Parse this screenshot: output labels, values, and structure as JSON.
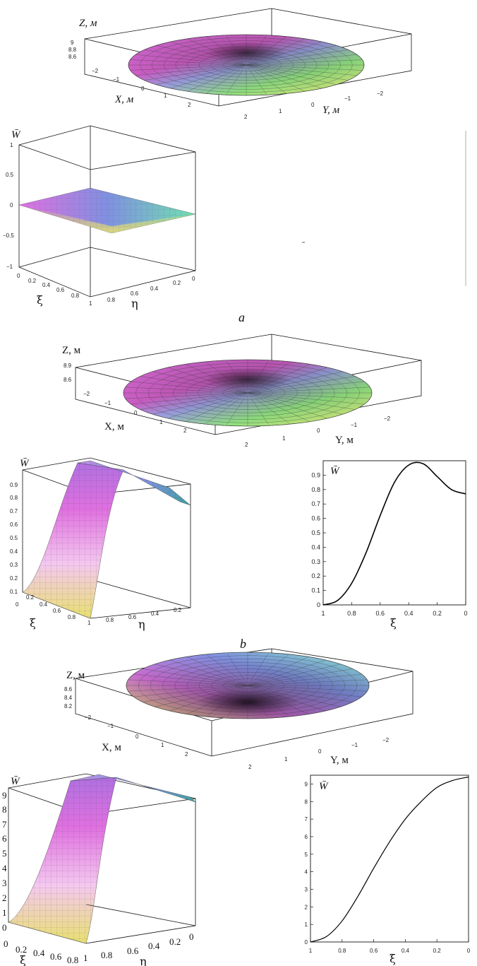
{
  "figure": {
    "panels": [
      {
        "caption": "a",
        "top": {
          "zlabel": "Z, м",
          "xlabel": "X, м",
          "ylabel": "Y, м",
          "zticks": [
            "9",
            "8.8",
            "8.6"
          ],
          "xticks": [
            "−2",
            "−1",
            "0",
            "1",
            "2"
          ],
          "yticks": [
            "2",
            "1",
            "0",
            "−1",
            "−2"
          ]
        },
        "surface": {
          "wlabel": "W̄",
          "wticks": [
            "1",
            "0.5",
            "0",
            "−0.5",
            "−1"
          ],
          "xi_ticks": [
            "0",
            "0.2",
            "0.4",
            "0.6",
            "0.8"
          ],
          "eta_ticks": [
            "1",
            "0.8",
            "0.6",
            "0.4",
            "0.2",
            "0"
          ],
          "xi_label": "ξ",
          "eta_label": "η"
        }
      },
      {
        "caption": "b",
        "top": {
          "zlabel": "Z, м",
          "xlabel": "X, м",
          "ylabel": "Y, м",
          "zticks": [
            "8.9",
            "8.6"
          ],
          "xticks": [
            "−2",
            "−1",
            "0",
            "1",
            "2"
          ],
          "yticks": [
            "2",
            "1",
            "0",
            "−1",
            "−2"
          ]
        },
        "surface": {
          "wlabel": "W̄",
          "wticks": [
            "0.9",
            "0.8",
            "0.7",
            "0.6",
            "0.5",
            "0.4",
            "0.3",
            "0.2",
            "0.1",
            "0"
          ],
          "xi_ticks": [
            "0.2",
            "0.4",
            "0.6",
            "0.8"
          ],
          "eta_ticks": [
            "1",
            "0.8",
            "0.6",
            "0.4",
            "0.2"
          ],
          "xi_label": "ξ",
          "eta_label": "η"
        },
        "profile": {
          "wlabel": "W̄",
          "yticks": [
            "0.9",
            "0.8",
            "0.7",
            "0.6",
            "0.5",
            "0.4",
            "0.3",
            "0.2",
            "0.1",
            "0"
          ],
          "xticks": [
            "1",
            "0.8",
            "0.6",
            "0.4",
            "0.2",
            "0"
          ],
          "xi_label": "ξ"
        }
      },
      {
        "caption": "",
        "top": {
          "zlabel": "Z, м",
          "xlabel": "X, м",
          "ylabel": "Y, м",
          "zticks": [
            "8.6",
            "8.4",
            "8.2"
          ],
          "xticks": [
            "−2",
            "−1",
            "0",
            "1",
            "2"
          ],
          "yticks": [
            "2",
            "1",
            "0",
            "−1",
            "−2"
          ]
        },
        "surface": {
          "wlabel": "W̄",
          "wticks": [
            "9",
            "8",
            "7",
            "6",
            "5",
            "4",
            "3",
            "2",
            "1",
            "0"
          ],
          "xi_ticks": [
            "0",
            "0.2",
            "0.4",
            "0.6",
            "0.8"
          ],
          "eta_ticks": [
            "1",
            "0.8",
            "0.6",
            "0.4",
            "0.2",
            "0"
          ],
          "xi_label": "ξ",
          "eta_label": "η"
        },
        "profile": {
          "wlabel": "W̄",
          "yticks": [
            "9",
            "8",
            "7",
            "6",
            "5",
            "4",
            "3",
            "2",
            "1",
            "0"
          ],
          "xticks": [
            "1",
            "0.8",
            "0.6",
            "0.4",
            "0.2",
            "0"
          ],
          "xi_label": "ξ"
        }
      }
    ]
  },
  "chart_data": [
    {
      "type": "line",
      "title": "",
      "xlabel": "ξ",
      "ylabel": "W̄",
      "x": [
        1,
        0.9,
        0.8,
        0.7,
        0.6,
        0.5,
        0.4,
        0.3,
        0.2,
        0.1,
        0
      ],
      "series": [
        {
          "values": [
            0,
            0.03,
            0.15,
            0.36,
            0.62,
            0.85,
            0.97,
            0.98,
            0.89,
            0.8,
            0.77
          ]
        }
      ],
      "xlim": [
        1,
        0
      ],
      "ylim": [
        0,
        1
      ]
    },
    {
      "type": "line",
      "title": "",
      "xlabel": "ξ",
      "ylabel": "W̄",
      "x": [
        1,
        0.9,
        0.8,
        0.7,
        0.6,
        0.5,
        0.4,
        0.3,
        0.2,
        0.1,
        0
      ],
      "series": [
        {
          "values": [
            0,
            0.3,
            1.2,
            2.6,
            4.2,
            5.7,
            7.0,
            8.0,
            8.8,
            9.2,
            9.4
          ]
        }
      ],
      "xlim": [
        1,
        0
      ],
      "ylim": [
        0,
        9.5
      ]
    }
  ]
}
